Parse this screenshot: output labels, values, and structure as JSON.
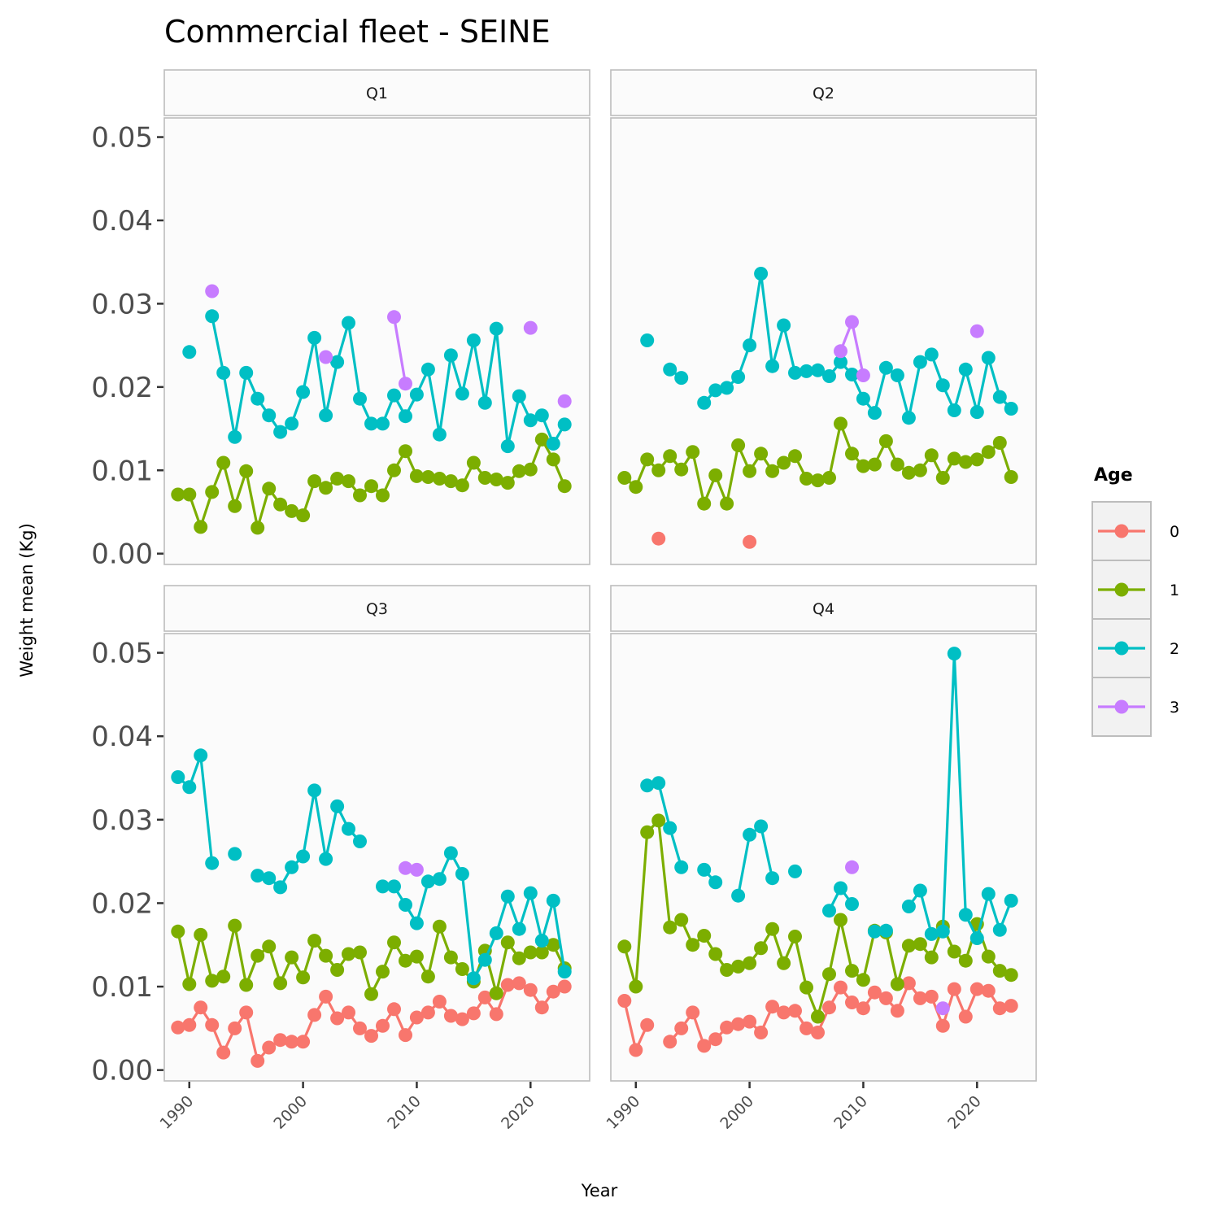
{
  "chart_data": {
    "type": "line",
    "title": "Commercial fleet - SEINE",
    "xlabel": "Year",
    "ylabel": "Weight mean (Kg)",
    "xlim": [
      1987.8,
      2025.2
    ],
    "ylim": [
      -0.0013,
      0.0523
    ],
    "x_ticks": [
      1990,
      2000,
      2010,
      2020
    ],
    "y_ticks": [
      0,
      0.01,
      0.02,
      0.03,
      0.04,
      0.05
    ],
    "y_tick_labels": [
      "0.00",
      "0.01",
      "0.02",
      "0.03",
      "0.04",
      "0.05"
    ],
    "grid": false,
    "legend": {
      "title": "Age",
      "position": "right",
      "entries": [
        {
          "label": "0",
          "color": "#F8766D"
        },
        {
          "label": "1",
          "color": "#7CAE00"
        },
        {
          "label": "2",
          "color": "#00BFC4"
        },
        {
          "label": "3",
          "color": "#C77CFF"
        }
      ]
    },
    "panels": [
      {
        "label": "Q1",
        "series": [
          {
            "name": "1",
            "x": [
              1989,
              1990,
              1991,
              1992,
              1993,
              1994,
              1995,
              1996,
              1997,
              1998,
              1999,
              2000,
              2001,
              2002,
              2003,
              2004,
              2005,
              2006,
              2007,
              2008,
              2009,
              2010,
              2011,
              2012,
              2013,
              2014,
              2015,
              2016,
              2017,
              2018,
              2019,
              2020,
              2021,
              2022,
              2023
            ],
            "values": [
              0.0071,
              0.0071,
              0.0032,
              0.0074,
              0.0109,
              0.0057,
              0.0099,
              0.0031,
              0.0078,
              0.0059,
              0.0051,
              0.0046,
              0.0087,
              0.0079,
              0.009,
              0.0087,
              0.007,
              0.0081,
              0.007,
              0.01,
              0.0123,
              0.0093,
              0.0092,
              0.009,
              0.0087,
              0.0082,
              0.0109,
              0.0091,
              0.0089,
              0.0085,
              0.0099,
              0.0101,
              0.0137,
              0.0113,
              0.0081
            ]
          },
          {
            "name": "2",
            "x": [
              1990,
              1992,
              1993,
              1994,
              1995,
              1996,
              1997,
              1998,
              1999,
              2000,
              2001,
              2002,
              2003,
              2004,
              2005,
              2006,
              2007,
              2008,
              2009,
              2010,
              2011,
              2012,
              2013,
              2014,
              2015,
              2016,
              2017,
              2018,
              2019,
              2020,
              2021,
              2022,
              2023
            ],
            "values": [
              0.0242,
              0.0285,
              0.0217,
              0.014,
              0.0217,
              0.0186,
              0.0166,
              0.0146,
              0.0156,
              0.0194,
              0.0259,
              0.0166,
              0.023,
              0.0277,
              0.0186,
              0.0156,
              0.0156,
              0.019,
              0.0165,
              0.0191,
              0.0221,
              0.0143,
              0.0238,
              0.0192,
              0.0256,
              0.0181,
              0.027,
              0.0129,
              0.0189,
              0.016,
              0.0166,
              0.0132,
              0.0155
            ]
          },
          {
            "name": "3",
            "x": [
              1992,
              2002,
              2008,
              2009,
              2020,
              2023
            ],
            "values": [
              0.0315,
              0.0236,
              0.0284,
              0.0204,
              0.0271,
              0.0183
            ]
          }
        ]
      },
      {
        "label": "Q2",
        "series": [
          {
            "name": "0",
            "x": [
              1992,
              2000
            ],
            "values": [
              0.0018,
              0.0014
            ]
          },
          {
            "name": "1",
            "x": [
              1989,
              1990,
              1991,
              1992,
              1993,
              1994,
              1995,
              1996,
              1997,
              1998,
              1999,
              2000,
              2001,
              2002,
              2003,
              2004,
              2005,
              2006,
              2007,
              2008,
              2009,
              2010,
              2011,
              2012,
              2013,
              2014,
              2015,
              2016,
              2017,
              2018,
              2019,
              2020,
              2021,
              2022,
              2023
            ],
            "values": [
              0.0091,
              0.008,
              0.0113,
              0.01,
              0.0117,
              0.0101,
              0.0122,
              0.006,
              0.0094,
              0.006,
              0.013,
              0.0099,
              0.012,
              0.0099,
              0.0109,
              0.0117,
              0.009,
              0.0088,
              0.0091,
              0.0156,
              0.012,
              0.0105,
              0.0107,
              0.0135,
              0.0107,
              0.0097,
              0.01,
              0.0118,
              0.0091,
              0.0114,
              0.011,
              0.0113,
              0.0122,
              0.0133,
              0.0092
            ]
          },
          {
            "name": "2",
            "x": [
              1991,
              1993,
              1994,
              1996,
              1997,
              1998,
              1999,
              2000,
              2001,
              2002,
              2003,
              2004,
              2005,
              2006,
              2007,
              2008,
              2009,
              2010,
              2011,
              2012,
              2013,
              2014,
              2015,
              2016,
              2017,
              2018,
              2019,
              2020,
              2021,
              2022,
              2023
            ],
            "values": [
              0.0256,
              0.0221,
              0.0211,
              0.0181,
              0.0196,
              0.0199,
              0.0212,
              0.025,
              0.0336,
              0.0225,
              0.0274,
              0.0217,
              0.0219,
              0.022,
              0.0213,
              0.023,
              0.0215,
              0.0186,
              0.0169,
              0.0223,
              0.0214,
              0.0163,
              0.023,
              0.0239,
              0.0202,
              0.0172,
              0.0221,
              0.017,
              0.0235,
              0.0188,
              0.0174
            ]
          },
          {
            "name": "3",
            "x": [
              2008,
              2009,
              2010,
              2020
            ],
            "values": [
              0.0243,
              0.0278,
              0.0214,
              0.0267
            ]
          }
        ]
      },
      {
        "label": "Q3",
        "series": [
          {
            "name": "0",
            "x": [
              1989,
              1990,
              1991,
              1992,
              1993,
              1994,
              1995,
              1996,
              1997,
              1998,
              1999,
              2000,
              2001,
              2002,
              2003,
              2004,
              2005,
              2006,
              2007,
              2008,
              2009,
              2010,
              2011,
              2012,
              2013,
              2014,
              2015,
              2016,
              2017,
              2018,
              2019,
              2020,
              2021,
              2022,
              2023
            ],
            "values": [
              0.0051,
              0.0054,
              0.0075,
              0.0054,
              0.0021,
              0.005,
              0.0069,
              0.0011,
              0.0027,
              0.0036,
              0.0034,
              0.0034,
              0.0066,
              0.0088,
              0.0062,
              0.0069,
              0.005,
              0.0041,
              0.0053,
              0.0073,
              0.0042,
              0.0063,
              0.0069,
              0.0082,
              0.0065,
              0.0061,
              0.0068,
              0.0087,
              0.0067,
              0.0102,
              0.0104,
              0.0096,
              0.0075,
              0.0094,
              0.01
            ]
          },
          {
            "name": "1",
            "x": [
              1989,
              1990,
              1991,
              1992,
              1993,
              1994,
              1995,
              1996,
              1997,
              1998,
              1999,
              2000,
              2001,
              2002,
              2003,
              2004,
              2005,
              2006,
              2007,
              2008,
              2009,
              2010,
              2011,
              2012,
              2013,
              2014,
              2015,
              2016,
              2017,
              2018,
              2019,
              2020,
              2021,
              2022,
              2023
            ],
            "values": [
              0.0166,
              0.0103,
              0.0162,
              0.0107,
              0.0112,
              0.0173,
              0.0102,
              0.0137,
              0.0148,
              0.0104,
              0.0135,
              0.0111,
              0.0155,
              0.0137,
              0.012,
              0.0139,
              0.0141,
              0.0091,
              0.0118,
              0.0153,
              0.0131,
              0.0136,
              0.0112,
              0.0172,
              0.0135,
              0.0121,
              0.0106,
              0.0143,
              0.0092,
              0.0153,
              0.0134,
              0.0141,
              0.0141,
              0.015,
              0.0122
            ]
          },
          {
            "name": "2",
            "x": [
              1989,
              1990,
              1991,
              1992,
              1994,
              1996,
              1997,
              1998,
              1999,
              2000,
              2001,
              2002,
              2003,
              2004,
              2005,
              2007,
              2008,
              2009,
              2010,
              2011,
              2012,
              2013,
              2014,
              2015,
              2016,
              2017,
              2018,
              2019,
              2020,
              2021,
              2022,
              2023
            ],
            "values": [
              0.0351,
              0.0339,
              0.0377,
              0.0248,
              0.0259,
              0.0233,
              0.023,
              0.0219,
              0.0243,
              0.0256,
              0.0335,
              0.0253,
              0.0316,
              0.0289,
              0.0274,
              0.022,
              0.022,
              0.0198,
              0.0176,
              0.0226,
              0.0229,
              0.026,
              0.0235,
              0.011,
              0.0132,
              0.0164,
              0.0208,
              0.0169,
              0.0212,
              0.0155,
              0.0203,
              0.0118
            ]
          },
          {
            "name": "3",
            "x": [
              2009,
              2010
            ],
            "values": [
              0.0242,
              0.024
            ]
          }
        ]
      },
      {
        "label": "Q4",
        "series": [
          {
            "name": "0",
            "x": [
              1989,
              1990,
              1991,
              1993,
              1994,
              1995,
              1996,
              1997,
              1998,
              1999,
              2000,
              2001,
              2002,
              2003,
              2004,
              2005,
              2006,
              2007,
              2008,
              2009,
              2010,
              2011,
              2012,
              2013,
              2014,
              2015,
              2016,
              2017,
              2018,
              2019,
              2020,
              2021,
              2022,
              2023
            ],
            "values": [
              0.0083,
              0.0024,
              0.0054,
              0.0034,
              0.005,
              0.0069,
              0.0029,
              0.0037,
              0.0051,
              0.0055,
              0.0058,
              0.0045,
              0.0076,
              0.0069,
              0.0071,
              0.005,
              0.0045,
              0.0075,
              0.0099,
              0.0081,
              0.0074,
              0.0093,
              0.0086,
              0.0071,
              0.0104,
              0.0086,
              0.0088,
              0.0053,
              0.0097,
              0.0064,
              0.0097,
              0.0095,
              0.0074,
              0.0077
            ]
          },
          {
            "name": "1",
            "x": [
              1989,
              1990,
              1991,
              1992,
              1993,
              1994,
              1995,
              1996,
              1997,
              1998,
              1999,
              2000,
              2001,
              2002,
              2003,
              2004,
              2005,
              2006,
              2007,
              2008,
              2009,
              2010,
              2011,
              2012,
              2013,
              2014,
              2015,
              2016,
              2017,
              2018,
              2019,
              2020,
              2021,
              2022,
              2023
            ],
            "values": [
              0.0148,
              0.01,
              0.0285,
              0.0299,
              0.0171,
              0.018,
              0.015,
              0.0161,
              0.0139,
              0.012,
              0.0124,
              0.0128,
              0.0146,
              0.0169,
              0.0128,
              0.016,
              0.0099,
              0.0064,
              0.0115,
              0.018,
              0.0119,
              0.0108,
              0.0167,
              0.0165,
              0.0103,
              0.0149,
              0.0151,
              0.0135,
              0.0172,
              0.0142,
              0.0131,
              0.0175,
              0.0136,
              0.0119,
              0.0114
            ]
          },
          {
            "name": "2",
            "x": [
              1991,
              1992,
              1993,
              1994,
              1996,
              1997,
              1999,
              2000,
              2001,
              2002,
              2004,
              2007,
              2008,
              2009,
              2011,
              2012,
              2014,
              2015,
              2016,
              2017,
              2018,
              2019,
              2020,
              2021,
              2022,
              2023
            ],
            "values": [
              0.0341,
              0.0344,
              0.029,
              0.0243,
              0.024,
              0.0225,
              0.0209,
              0.0282,
              0.0292,
              0.023,
              0.0238,
              0.0191,
              0.0218,
              0.0199,
              0.0166,
              0.0167,
              0.0196,
              0.0215,
              0.0163,
              0.0166,
              0.0499,
              0.0186,
              0.0158,
              0.0211,
              0.0168,
              0.0203
            ]
          },
          {
            "name": "3",
            "x": [
              2009,
              2017
            ],
            "values": [
              0.0243,
              0.0074
            ]
          }
        ]
      }
    ]
  }
}
